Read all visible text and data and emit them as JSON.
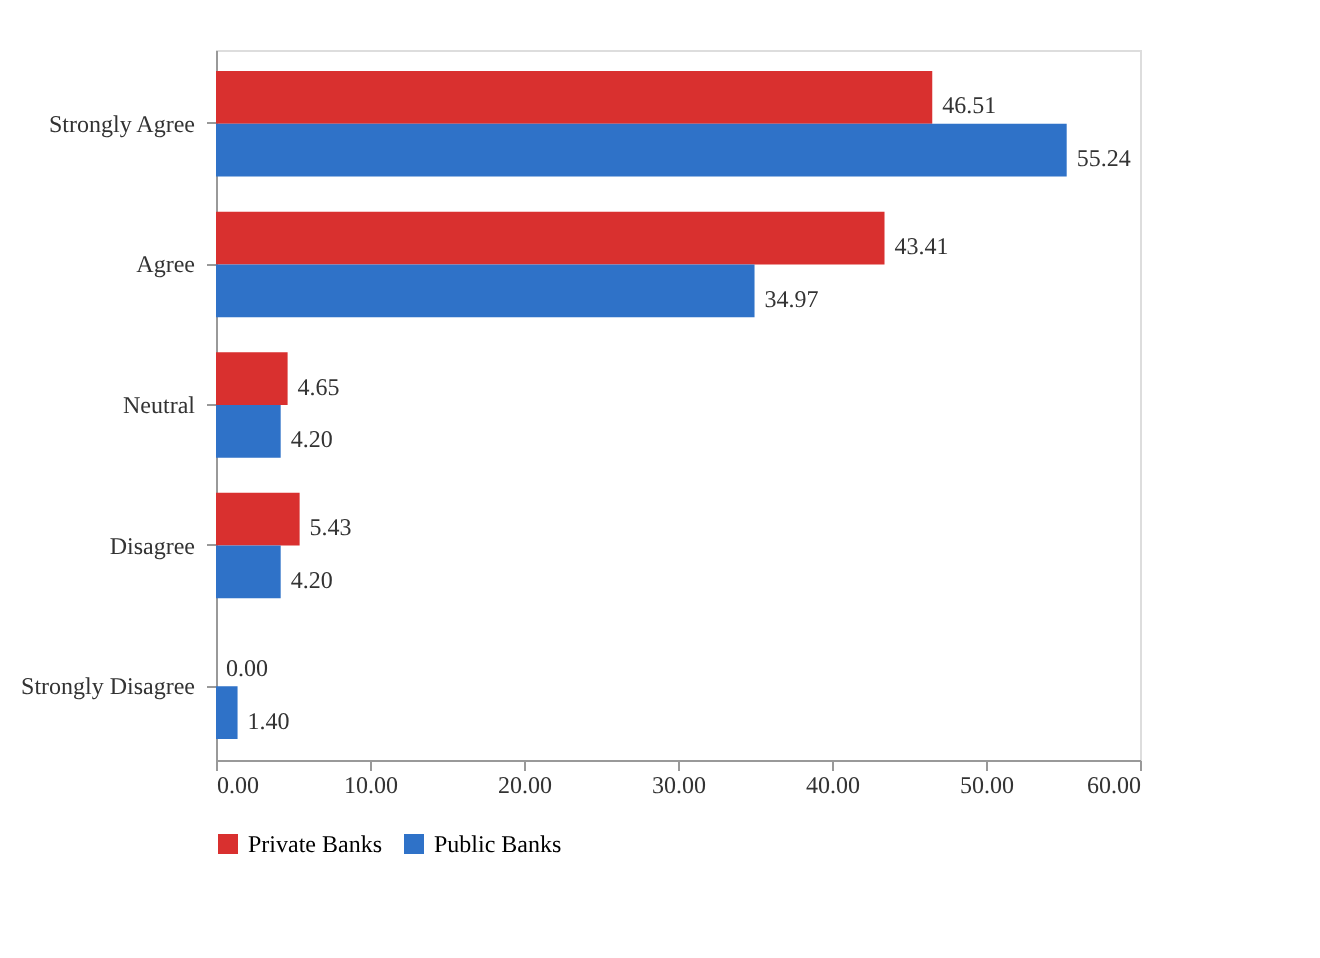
{
  "chart_data": {
    "type": "bar",
    "orientation": "horizontal",
    "categories": [
      "Strongly Agree",
      "Agree",
      "Neutral",
      "Disagree",
      "Strongly Disagree"
    ],
    "series": [
      {
        "name": "Private Banks",
        "color": "#d9302f",
        "values": [
          46.51,
          43.41,
          4.65,
          5.43,
          0.0
        ],
        "value_labels": [
          "46.51",
          "43.41",
          "4.65",
          "5.43",
          "0.00"
        ]
      },
      {
        "name": "Public Banks",
        "color": "#2f72c8",
        "values": [
          55.24,
          34.97,
          4.2,
          4.2,
          1.4
        ],
        "value_labels": [
          "55.24",
          "34.97",
          "4.20",
          "4.20",
          "1.40"
        ]
      }
    ],
    "xlim": [
      0,
      60
    ],
    "xticks": [
      {
        "value": 0,
        "label": "0.00"
      },
      {
        "value": 10,
        "label": "10.00"
      },
      {
        "value": 20,
        "label": "20.00"
      },
      {
        "value": 30,
        "label": "30.00"
      },
      {
        "value": 40,
        "label": "40.00"
      },
      {
        "value": 50,
        "label": "50.00"
      },
      {
        "value": 60,
        "label": "60.00"
      }
    ],
    "legend": "bottom",
    "grid": false
  }
}
